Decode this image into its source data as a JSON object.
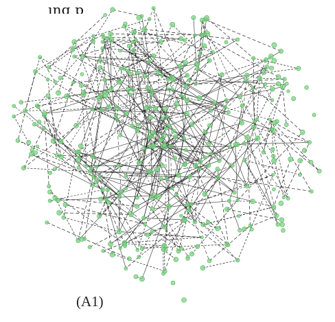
{
  "figure": {
    "title_fragment": "ing p",
    "panel_label": "(A1)",
    "node_color": "#7fd68a",
    "node_stroke": "#4caf50",
    "edge_color": "#1a1a1a",
    "edge_style_outer": "dashed",
    "edge_style_core": "solid"
  }
}
